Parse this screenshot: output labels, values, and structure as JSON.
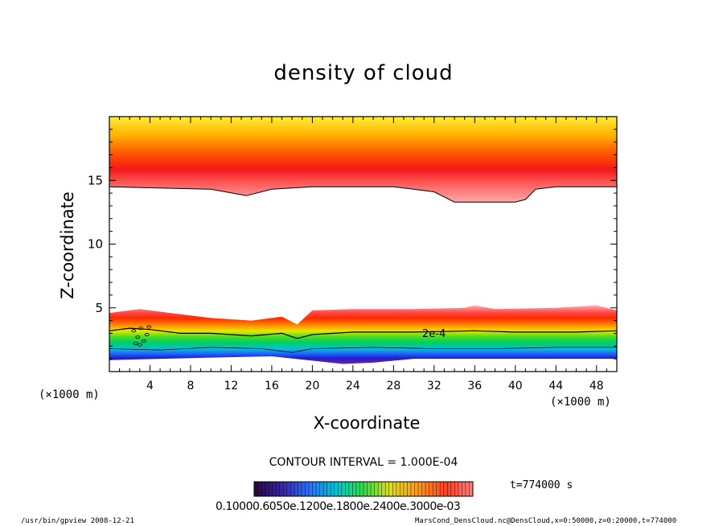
{
  "chart_data": {
    "type": "heatmap",
    "title": "density of cloud",
    "xlabel": "X-coordinate",
    "ylabel": "Z-coordinate",
    "x_unit": "(×1000 m)",
    "xlim": [
      0,
      50
    ],
    "ylim": [
      0,
      20
    ],
    "x_ticks": [
      4,
      8,
      12,
      16,
      20,
      24,
      28,
      32,
      36,
      40,
      44,
      48
    ],
    "y_ticks": [
      5,
      10,
      15
    ],
    "contour_interval": "CONTOUR INTERVAL = 1.000E-04",
    "contour_label": "2e-4",
    "time": "t=774000 s",
    "colorbar_labels": "0.10000.6050e.1200e.1800e.2400e.3000e-03",
    "upper_layer": {
      "z_bottom_contour": [
        [
          0,
          14.5
        ],
        [
          10,
          14.3
        ],
        [
          13.5,
          13.8
        ],
        [
          16,
          14.3
        ],
        [
          20,
          14.5
        ],
        [
          28,
          14.5
        ],
        [
          32,
          14.1
        ],
        [
          34,
          13.3
        ],
        [
          36,
          13.3
        ],
        [
          40,
          13.3
        ],
        [
          41,
          13.5
        ],
        [
          42,
          14.3
        ],
        [
          44,
          14.5
        ],
        [
          50,
          14.5
        ]
      ],
      "z_peak": 16.2,
      "z_top": 20
    },
    "lower_layer": {
      "z_top": [
        [
          0,
          4.6
        ],
        [
          3,
          4.9
        ],
        [
          6,
          4.6
        ],
        [
          10,
          4.2
        ],
        [
          14,
          4.0
        ],
        [
          17,
          4.3
        ],
        [
          18.5,
          3.7
        ],
        [
          20,
          4.8
        ],
        [
          24,
          4.9
        ],
        [
          30,
          4.9
        ],
        [
          35,
          5.0
        ],
        [
          36,
          5.2
        ],
        [
          38,
          4.9
        ],
        [
          44,
          5.0
        ],
        [
          48,
          5.2
        ],
        [
          50,
          4.8
        ]
      ],
      "contour_2e4": [
        [
          0,
          3.2
        ],
        [
          2,
          3.4
        ],
        [
          4,
          3.3
        ],
        [
          7,
          3.0
        ],
        [
          10,
          3.0
        ],
        [
          14,
          2.8
        ],
        [
          17,
          3.0
        ],
        [
          18.5,
          2.6
        ],
        [
          20,
          2.9
        ],
        [
          24,
          3.1
        ],
        [
          30,
          3.1
        ],
        [
          36,
          3.2
        ],
        [
          40,
          3.1
        ],
        [
          46,
          3.1
        ],
        [
          50,
          3.2
        ]
      ],
      "contour_low": [
        [
          0,
          1.8
        ],
        [
          5,
          1.7
        ],
        [
          10,
          1.9
        ],
        [
          15,
          1.8
        ],
        [
          18,
          1.5
        ],
        [
          20,
          1.8
        ],
        [
          26,
          1.9
        ],
        [
          32,
          1.8
        ],
        [
          38,
          1.8
        ],
        [
          44,
          1.9
        ],
        [
          50,
          1.9
        ]
      ],
      "z_bottom": [
        [
          0,
          0.9
        ],
        [
          10,
          1.1
        ],
        [
          16,
          1.2
        ],
        [
          23,
          0.6
        ],
        [
          26,
          0.7
        ],
        [
          30,
          1.0
        ],
        [
          40,
          1.0
        ],
        [
          50,
          1.0
        ]
      ]
    }
  },
  "footer": {
    "left": "/usr/bin/gpview  2008-12-21",
    "right": "MarsCond_DensCloud.nc@DensCloud,x=0:50000,z=0:20000,t=774000"
  }
}
